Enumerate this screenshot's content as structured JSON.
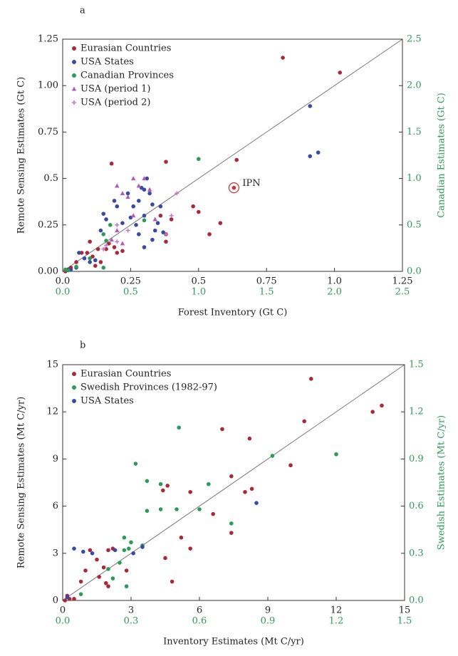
{
  "chart_data": [
    {
      "type": "scatter",
      "panel_label": "a",
      "x_label": "Forest Inventory (Gt C)",
      "y_label": "Remote Sensing Estimates (Gt C)",
      "y2_label": "Canadian Estimates (Gt C)",
      "xlim": [
        0,
        1.25
      ],
      "xticks": [
        {
          "value": 0,
          "label": "0.0"
        },
        0.25,
        0.5,
        0.75,
        {
          "value": 1,
          "label": "1.0"
        },
        1.25
      ],
      "x2lim": [
        0,
        2.5
      ],
      "x2ticks": [
        {
          "value": 0,
          "label": "0.0"
        },
        0.5,
        {
          "value": 1,
          "label": "1.0"
        },
        1.5,
        {
          "value": 2,
          "label": "2.0"
        },
        2.5
      ],
      "ylim": [
        0,
        1.25
      ],
      "yticks": [
        {
          "value": 0,
          "label": "0.00"
        },
        0.25,
        0.5,
        0.75,
        {
          "value": 1,
          "label": "1.00"
        },
        1.25
      ],
      "y2lim": [
        0,
        2.5
      ],
      "y2ticks": [
        {
          "value": 0,
          "label": "0.0"
        },
        0.5,
        {
          "value": 1,
          "label": "1.0"
        },
        1.5,
        {
          "value": 2,
          "label": "2.0"
        },
        2.5
      ],
      "diagonal": true,
      "legend": "upper left",
      "series": [
        {
          "name": "Eurasian Countries",
          "color": "#a82a3a",
          "marker": "circle",
          "x": [
            0.81,
            1.02,
            0.18,
            0.38,
            0.64,
            0.48,
            0.5,
            0.54,
            0.58,
            0.38,
            0.38,
            0.36,
            0.4,
            0.01,
            0.02,
            0.03,
            0.05,
            0.07,
            0.09,
            0.11,
            0.12,
            0.14,
            0.16,
            0.17,
            0.19,
            0.2,
            0.22,
            0.1,
            0.13
          ],
          "y": [
            1.15,
            1.07,
            0.58,
            0.59,
            0.6,
            0.35,
            0.32,
            0.2,
            0.26,
            0.2,
            0.16,
            0.3,
            0.28,
            0,
            0.01,
            0.02,
            0.05,
            0.1,
            0.1,
            0.08,
            0.03,
            0.05,
            0.12,
            0.15,
            0.13,
            0.1,
            0.11,
            0.16,
            0.12
          ]
        },
        {
          "name": "USA States",
          "color": "#3a4aa0",
          "marker": "circle",
          "x": [
            0.91,
            0.91,
            0.94,
            0.15,
            0.16,
            0.19,
            0.2,
            0.22,
            0.24,
            0.25,
            0.26,
            0.27,
            0.28,
            0.29,
            0.3,
            0.3,
            0.31,
            0.32,
            0.33,
            0.34,
            0.35,
            0.36,
            0.28,
            0.3,
            0.33,
            0.37,
            0.06,
            0.08,
            0.1,
            0.05,
            0.03,
            0.12,
            0.14
          ],
          "y": [
            0.89,
            0.62,
            0.64,
            0.31,
            0.28,
            0.38,
            0.35,
            0.26,
            0.42,
            0.29,
            0.35,
            0.25,
            0.38,
            0.45,
            0.3,
            0.44,
            0.5,
            0.42,
            0.36,
            0.22,
            0.26,
            0.35,
            0.2,
            0.13,
            0.17,
            0.21,
            0.1,
            0.07,
            0.05,
            0.02,
            0.01,
            0.06,
            0.22
          ]
        },
        {
          "name": "Canadian Provinces",
          "color": "#2e9a5a",
          "marker": "circle",
          "axis": "secondary",
          "x": [
            1.0,
            0.35,
            0.3,
            0.32,
            0.3,
            0.2,
            0.1,
            0.04,
            0.02,
            0.6
          ],
          "y": [
            1.21,
            0.5,
            0.4,
            0.33,
            0.04,
            0.14,
            0.05,
            0.01,
            0.02,
            0.55
          ]
        },
        {
          "name": "USA (period 1)",
          "color": "#b25ab8",
          "marker": "triangle",
          "x": [
            0.2,
            0.22,
            0.24,
            0.26,
            0.28,
            0.3,
            0.2,
            0.22,
            0.18,
            0.32,
            0.34,
            0.26
          ],
          "y": [
            0.46,
            0.42,
            0.4,
            0.5,
            0.46,
            0.5,
            0.22,
            0.15,
            0.17,
            0.44,
            0.28,
            0.3
          ]
        },
        {
          "name": "USA (period 2)",
          "color": "#c878c8",
          "marker": "plus",
          "x": [
            0.42,
            0.4,
            0.24,
            0.2,
            0.16,
            0.15,
            0.38,
            0.2
          ],
          "y": [
            0.42,
            0.3,
            0.22,
            0.16,
            0.14,
            0.12,
            0.2,
            0.25
          ]
        }
      ],
      "annotations": [
        {
          "label": "IPN",
          "x": 0.63,
          "y": 0.45,
          "color": "#d0303a"
        }
      ]
    },
    {
      "type": "scatter",
      "panel_label": "b",
      "x_label": "Inventory Estimates (Mt C/yr)",
      "y_label": "Remote Sensing Estimates (Mt C/yr)",
      "y2_label": "Swedish Estimates (Mt C/yr)",
      "xlim": [
        0,
        15
      ],
      "xticks": [
        0,
        3,
        6,
        9,
        12,
        15
      ],
      "x2lim": [
        0,
        1.5
      ],
      "x2ticks": [
        {
          "value": 0,
          "label": "0.0"
        },
        0.3,
        0.6,
        0.9,
        1.2,
        1.5
      ],
      "ylim": [
        0,
        15
      ],
      "yticks": [
        0,
        3,
        6,
        9,
        12,
        15
      ],
      "y2lim": [
        0,
        1.5
      ],
      "y2ticks": [
        {
          "value": 0,
          "label": "0.0"
        },
        0.3,
        0.6,
        0.9,
        1.2,
        1.5
      ],
      "diagonal": true,
      "legend": "upper left",
      "series": [
        {
          "name": "Eurasian Countries",
          "color": "#a82a3a",
          "marker": "circle",
          "x": [
            10.9,
            13.6,
            14,
            10.6,
            7,
            10,
            8.2,
            7.4,
            8.0,
            8.3,
            4.6,
            4.4,
            5.6,
            6.6,
            5.2,
            5.6,
            7.4,
            4.8,
            4.5,
            2.2,
            2.0,
            1.2,
            1.5,
            1.0,
            1.6,
            1.8,
            1.9,
            2.0,
            0.8,
            0.3,
            0.2,
            0.1,
            0.5,
            2.8
          ],
          "y": [
            14.1,
            12.0,
            12.4,
            11.4,
            10.9,
            8.6,
            10.3,
            7.9,
            6.9,
            7.1,
            7.3,
            7.0,
            6.9,
            5.5,
            4.0,
            3.3,
            4.3,
            1.2,
            2.7,
            3.3,
            3.2,
            3.2,
            2.6,
            1.9,
            1.5,
            2.1,
            1.1,
            0.9,
            1.2,
            0.1,
            0.3,
            0,
            0.1,
            1.9
          ]
        },
        {
          "name": "Swedish Provinces (1982-97)",
          "color": "#2e9a5a",
          "marker": "circle",
          "axis": "secondary",
          "x": [
            0.51,
            0.92,
            1.2,
            0.32,
            0.37,
            0.43,
            0.64,
            0.74,
            0.5,
            0.6,
            0.37,
            0.43,
            0.27,
            0.29,
            0.3,
            0.27,
            0.28,
            0.25,
            0.22,
            0.2,
            0.08,
            0.35
          ],
          "y": [
            1.1,
            0.92,
            0.93,
            0.87,
            0.76,
            0.74,
            0.74,
            0.49,
            0.58,
            0.58,
            0.57,
            0.58,
            0.4,
            0.33,
            0.37,
            0.32,
            0.09,
            0.24,
            0.14,
            0.2,
            0.04,
            0.35
          ]
        },
        {
          "name": "USA States",
          "color": "#3a4aa0",
          "marker": "circle",
          "x": [
            0.5,
            0.9,
            1.3,
            3.1,
            3.5,
            8.5,
            2.3,
            0.2
          ],
          "y": [
            3.3,
            3.1,
            3.0,
            3.0,
            3.4,
            6.2,
            3.2,
            0.2
          ]
        }
      ]
    }
  ]
}
